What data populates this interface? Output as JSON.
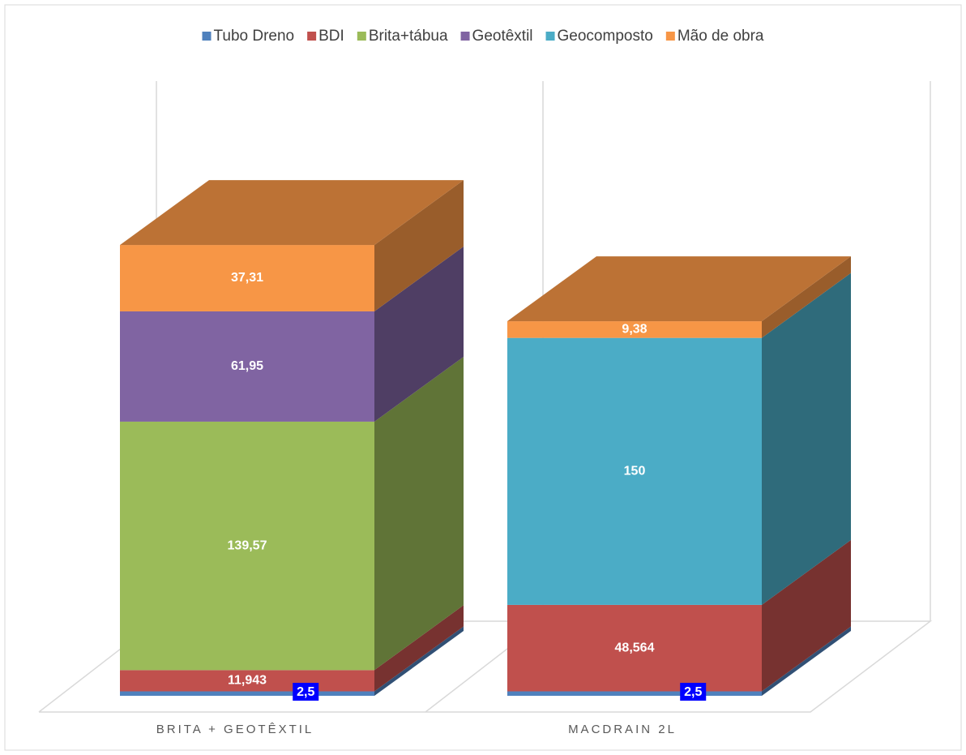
{
  "chart_data": {
    "type": "bar3d_stacked",
    "categories": [
      "BRITA + GEOTÊXTIL",
      "MACDRAIN 2L"
    ],
    "series": [
      {
        "name": "Tubo Dreno",
        "color": "#4f81bd",
        "values": [
          2.5,
          2.5
        ],
        "value_labels": [
          "2,5",
          "2,5"
        ]
      },
      {
        "name": "BDI",
        "color": "#c0504d",
        "values": [
          11.943,
          48.564
        ],
        "value_labels": [
          "11,943",
          "48,564"
        ]
      },
      {
        "name": "Brita+tábua",
        "color": "#9bbb59",
        "values": [
          139.57,
          null
        ],
        "value_labels": [
          "139,57",
          null
        ]
      },
      {
        "name": "Geotêxtil",
        "color": "#8064a2",
        "values": [
          61.95,
          null
        ],
        "value_labels": [
          "61,95",
          null
        ]
      },
      {
        "name": "Geocomposto",
        "color": "#4bacc6",
        "values": [
          null,
          150
        ],
        "value_labels": [
          null,
          "150"
        ]
      },
      {
        "name": "Mão de obra",
        "color": "#f79646",
        "values": [
          37.31,
          9.38
        ],
        "value_labels": [
          "37,31",
          "9,38"
        ]
      }
    ],
    "ylim": [
      0,
      300
    ],
    "legend": "top"
  }
}
